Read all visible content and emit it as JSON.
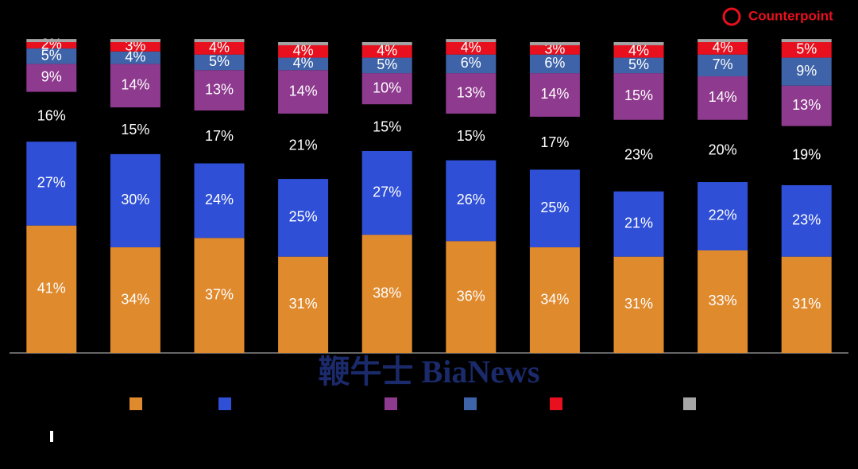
{
  "chart_data": {
    "type": "stacked-bar",
    "brand": "Counterpoint",
    "watermark": "鞭牛士 BiaNews",
    "categories": [
      null,
      null,
      null,
      null,
      null,
      null,
      null,
      null,
      null,
      null
    ],
    "ylim": [
      0,
      100
    ],
    "series": [
      {
        "color": "#e08a2e",
        "values": [
          41,
          34,
          37,
          31,
          38,
          36,
          34,
          31,
          33,
          31
        ],
        "value_labels": [
          "41%",
          "34%",
          "37%",
          "31%",
          "38%",
          "36%",
          "34%",
          "31%",
          "33%",
          "31%"
        ]
      },
      {
        "color": "#2f4fd6",
        "values": [
          27,
          30,
          24,
          25,
          27,
          26,
          25,
          21,
          22,
          23
        ],
        "value_labels": [
          "27%",
          "30%",
          "24%",
          "25%",
          "27%",
          "26%",
          "25%",
          "21%",
          "22%",
          "23%"
        ]
      },
      {
        "color": "#000000",
        "values": [
          16,
          15,
          17,
          21,
          15,
          15,
          17,
          23,
          20,
          19
        ],
        "value_labels": [
          "16%",
          "15%",
          "17%",
          "21%",
          "15%",
          "15%",
          "17%",
          "23%",
          "20%",
          "19%"
        ]
      },
      {
        "color": "#8e3a8e",
        "values": [
          9,
          14,
          13,
          14,
          10,
          13,
          14,
          15,
          14,
          13
        ],
        "value_labels": [
          "9%",
          "14%",
          "13%",
          "14%",
          "10%",
          "13%",
          "14%",
          "15%",
          "14%",
          "13%"
        ]
      },
      {
        "color": "#3e63a8",
        "values": [
          5,
          4,
          5,
          4,
          5,
          6,
          6,
          5,
          7,
          9
        ],
        "value_labels": [
          "5%",
          "4%",
          "5%",
          "4%",
          "5%",
          "6%",
          "6%",
          "5%",
          "7%",
          "9%"
        ]
      },
      {
        "color": "#e8101e",
        "values": [
          2,
          3,
          4,
          4,
          4,
          4,
          3,
          4,
          4,
          5
        ],
        "value_labels": [
          "2%",
          "3%",
          "4%",
          "4%",
          "4%",
          "4%",
          "3%",
          "4%",
          "4%",
          "5%"
        ]
      },
      {
        "color": "#a6a6a6",
        "values": [
          1,
          1,
          1,
          1,
          1,
          1,
          1,
          1,
          1,
          1
        ]
      }
    ]
  }
}
